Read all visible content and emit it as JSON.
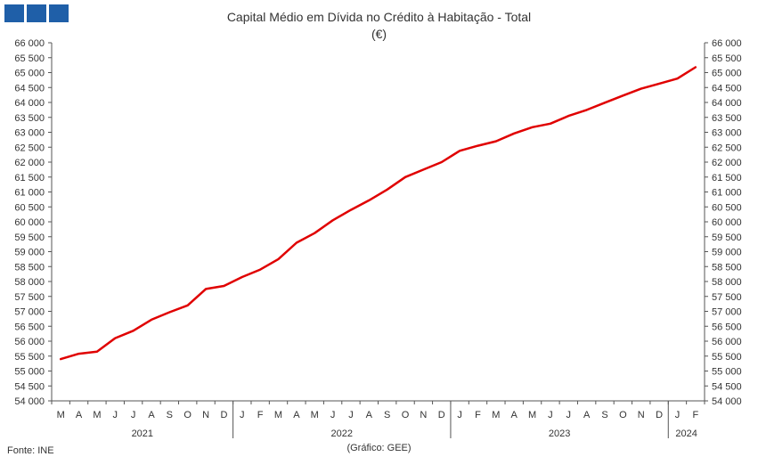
{
  "header": {
    "logo_icon": "ine-logo-squares",
    "title": "Capital Médio em Dívida no Crédito à Habitação - Total",
    "subtitle": "(€)"
  },
  "footer": {
    "source": "Fonte: INE",
    "credit": "(Gráfico: GEE)"
  },
  "colors": {
    "line": "#e00000",
    "logo": "#1f5fa8"
  },
  "chart_data": {
    "type": "line",
    "title": "Capital Médio em Dívida no Crédito à Habitação - Total",
    "subtitle": "(€)",
    "ylim": [
      54000,
      66000
    ],
    "ytick_step": 500,
    "y_ticks_labels": [
      "54 000",
      "54 500",
      "55 000",
      "55 500",
      "56 000",
      "56 500",
      "57 000",
      "57 500",
      "58 000",
      "58 500",
      "59 000",
      "59 500",
      "60 000",
      "60 500",
      "61 000",
      "61 500",
      "62 000",
      "62 500",
      "63 000",
      "63 500",
      "64 000",
      "64 500",
      "65 000",
      "65 500",
      "66 000"
    ],
    "grid": false,
    "legend": "none",
    "categories": [
      "M",
      "A",
      "M",
      "J",
      "J",
      "A",
      "S",
      "O",
      "N",
      "D",
      "J",
      "F",
      "M",
      "A",
      "M",
      "J",
      "J",
      "A",
      "S",
      "O",
      "N",
      "D",
      "J",
      "F",
      "M",
      "A",
      "M",
      "J",
      "J",
      "A",
      "S",
      "O",
      "N",
      "D",
      "J",
      "F"
    ],
    "years": [
      {
        "label": "2021",
        "months": 10
      },
      {
        "label": "2022",
        "months": 12
      },
      {
        "label": "2023",
        "months": 12
      },
      {
        "label": "2024",
        "months": 2
      }
    ],
    "series": [
      {
        "values": [
          55400,
          55580,
          55650,
          56100,
          56350,
          56720,
          56970,
          57200,
          57750,
          57850,
          58150,
          58400,
          58750,
          59300,
          59620,
          60050,
          60400,
          60720,
          61080,
          61500,
          61750,
          62000,
          62380,
          62550,
          62700,
          62960,
          63170,
          63290,
          63550,
          63750,
          63990,
          64230,
          64460,
          64630,
          64800,
          65180
        ]
      }
    ]
  }
}
